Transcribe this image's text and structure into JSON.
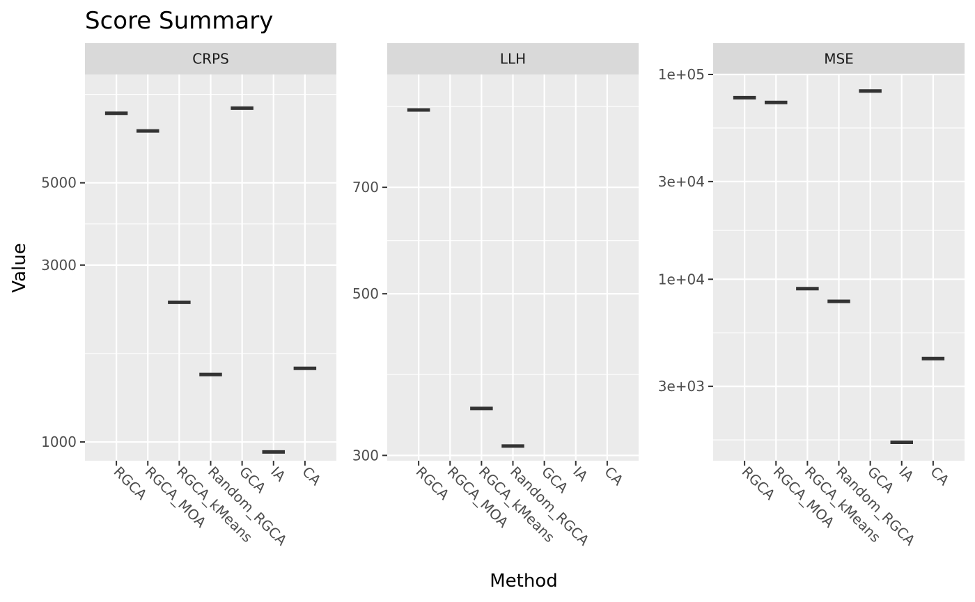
{
  "chart_data": {
    "type": "crossbar",
    "title": "Score Summary",
    "xlabel": "Method",
    "ylabel": "Value",
    "categories": [
      "RGCA",
      "RGCA_MOA",
      "RGCA_kMeans",
      "Random_RGCA",
      "GCA",
      "IA",
      "CA"
    ],
    "y_scale": "log10",
    "y_scales_free": true,
    "grid": true,
    "panels": [
      {
        "strip": "CRPS",
        "ylim": [
          890,
          9800
        ],
        "y_ticks": [
          1000,
          3000,
          5000
        ],
        "y_tick_labels": [
          "1000",
          "3000",
          "5000"
        ],
        "values": [
          7700,
          6900,
          2380,
          1520,
          7950,
          940,
          1580
        ]
      },
      {
        "strip": "LLH",
        "ylim": [
          295,
          1000
        ],
        "y_ticks": [
          300,
          500,
          700
        ],
        "y_tick_labels": [
          "300",
          "500",
          "700"
        ],
        "values": [
          894,
          null,
          348,
          309,
          null,
          null,
          null
        ]
      },
      {
        "strip": "MSE",
        "ylim": [
          1300,
          100000
        ],
        "y_ticks": [
          3000,
          10000,
          30000,
          100000
        ],
        "y_tick_labels": [
          "3e+03",
          "1e+04",
          "3e+04",
          "1e+05"
        ],
        "values": [
          77000,
          73000,
          9000,
          7800,
          83000,
          1600,
          4100
        ]
      }
    ]
  }
}
